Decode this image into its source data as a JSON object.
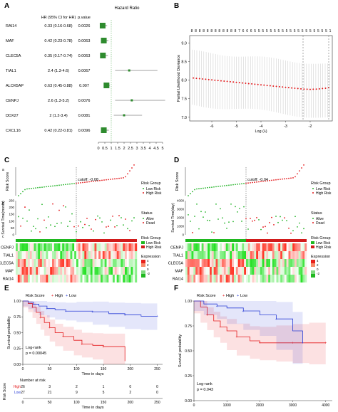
{
  "panel_labels": [
    "A",
    "B",
    "C",
    "D",
    "E",
    "F"
  ],
  "forest": {
    "title": "Hazard Ratio",
    "col_hr": "HR (95% CI for HR)",
    "col_p": "p.value",
    "genes": [
      "RAI14",
      "MAF",
      "CLEC5A",
      "TIAL1",
      "ALOX5AP",
      "CENPJ",
      "DDX27",
      "CXCL16"
    ],
    "hr_text": [
      "0.33 (0.16-0.68)",
      "0.42 (0.23-0.78)",
      "0.35 (0.17-0.74)",
      "2.4 (1.3-4.6)",
      "0.63 (0.45-0.88)",
      "2.6 (1.3-5.2)",
      "2 (1.2-3.4)",
      "0.42 (0.22-0.81)"
    ],
    "p_text": [
      "0.0026",
      "0.0063",
      "0.0063",
      "0.0067",
      "0.007",
      "0.0076",
      "0.0081",
      "0.0096"
    ],
    "x_ticks": [
      "0",
      "0.5",
      "1",
      "1.5",
      "2",
      "2.5",
      "3",
      "3.5",
      "4",
      "4.5",
      "5"
    ]
  },
  "lasso": {
    "top_counts": [
      "8",
      "8",
      "8",
      "8",
      "8",
      "8",
      "8",
      "8",
      "8",
      "8",
      "8",
      "8",
      "7",
      "6",
      "6",
      "6",
      "5",
      "5",
      "5",
      "5",
      "5",
      "5",
      "5",
      "5",
      "5",
      "5",
      "5",
      "5",
      "5",
      "5",
      "5",
      "5",
      "5",
      "5",
      "5",
      "1"
    ],
    "ylabel": "Partial Likelihood Deviance",
    "xlabel": "Log (λ)",
    "y_ticks": [
      "7.0",
      "7.5",
      "8.0",
      "8.5",
      "9.0"
    ],
    "x_ticks": [
      "-6",
      "-5",
      "-4",
      "-3",
      "-2"
    ]
  },
  "risk_c": {
    "cutoff": "cutoff: -0.08",
    "ylabel_score": "Risk Score",
    "ylabel_time": "Survival Time(month)",
    "y_ticks_time": [
      "0",
      "50",
      "100",
      "150",
      "200",
      "250"
    ],
    "legend_group_title": "Risk Group",
    "legend_low": "Low Risk",
    "legend_high": "High Risk",
    "legend_status_title": "Status",
    "legend_alive": "Alive",
    "legend_dead": "Dead",
    "genes": [
      "CENPJ",
      "TIAL1",
      "CLEC5A",
      "MAF",
      "RAI14"
    ],
    "expr_title": "Expression",
    "expr_ticks": [
      "4",
      "2",
      "0",
      "-2"
    ],
    "small_labels": [
      "a",
      "b",
      "c"
    ]
  },
  "risk_d": {
    "cutoff": "cutoff: -0.04",
    "ylabel_score": "Risk Score",
    "ylabel_time": "Survival Time(day)",
    "y_ticks_time": [
      "0",
      "1000",
      "2000",
      "3000",
      "4000"
    ],
    "legend_group_title": "Risk Group",
    "legend_low": "Low Risk",
    "legend_high": "High Risk",
    "legend_status_title": "Status",
    "legend_alive": "Alive",
    "legend_dead": "Dead",
    "genes": [
      "CENPJ",
      "TIAL1",
      "CLEC5A",
      "MAF",
      "RAI14"
    ],
    "expr_title": "Expression",
    "expr_ticks": [
      "4",
      "2",
      "0",
      "-2"
    ]
  },
  "km_e": {
    "legend_title": "Risk Score",
    "legend_high": "High",
    "legend_low": "Low",
    "ylabel": "Survival probability",
    "y_ticks": [
      "0.00",
      "0.25",
      "0.50",
      "0.75",
      "1.00"
    ],
    "x_ticks": [
      "0",
      "50",
      "100",
      "150",
      "200",
      "250"
    ],
    "xlabel": "Time in days",
    "logrank": "Log-rank",
    "pvalue": "p = 0.00045",
    "risk_table_title": "Number at risk",
    "risk_rows": [
      {
        "label": "High",
        "values": [
          "26",
          "3",
          "2",
          "1",
          "0",
          "0"
        ]
      },
      {
        "label": "Low",
        "values": [
          "27",
          "21",
          "9",
          "5",
          "2",
          "0"
        ]
      }
    ],
    "risk_ylabel": "Risk Score",
    "risk_xlabel": "Time in days"
  },
  "km_f": {
    "legend_title": "Risk Score",
    "legend_high": "High",
    "legend_low": "Low",
    "ylabel": "Survival probability",
    "y_ticks": [
      "0.00",
      "0.25",
      "0.50",
      "0.75",
      "1.00"
    ],
    "x_ticks": [
      "0",
      "1000",
      "2000",
      "3000",
      "4000"
    ],
    "logrank": "Log-rank",
    "pvalue": "p = 0.043"
  },
  "colors": {
    "high": "#e41a1c",
    "low": "#2b3fd6",
    "alive": "#27b42c",
    "forest_box": "#2e8b2e",
    "dev_point": "#e41a1c"
  },
  "chart_data": [
    {
      "type": "scatter",
      "panel": "A",
      "categories": [
        "RAI14",
        "MAF",
        "CLEC5A",
        "TIAL1",
        "ALOX5AP",
        "CENPJ",
        "DDX27",
        "CXCL16"
      ],
      "hr": [
        0.33,
        0.42,
        0.35,
        2.4,
        0.63,
        2.6,
        2.0,
        0.42
      ],
      "ci_low": [
        0.16,
        0.23,
        0.17,
        1.3,
        0.45,
        1.3,
        1.2,
        0.22
      ],
      "ci_high": [
        0.68,
        0.78,
        0.74,
        4.6,
        0.88,
        5.2,
        3.4,
        0.81
      ],
      "p_value": [
        0.0026,
        0.0063,
        0.0063,
        0.0067,
        0.007,
        0.0076,
        0.0081,
        0.0096
      ],
      "xlim": [
        0,
        5
      ]
    },
    {
      "type": "line",
      "panel": "B",
      "x": [
        -6.8,
        -6.5,
        -6.2,
        -5.9,
        -5.6,
        -5.3,
        -5.0,
        -4.7,
        -4.4,
        -4.1,
        -3.8,
        -3.5,
        -3.2,
        -2.9,
        -2.6,
        -2.3,
        -2.0,
        -1.7,
        -1.4,
        -1.2
      ],
      "y": [
        8.06,
        8.04,
        8.02,
        8.0,
        7.98,
        7.96,
        7.94,
        7.92,
        7.9,
        7.88,
        7.86,
        7.84,
        7.82,
        7.8,
        7.78,
        7.76,
        7.75,
        7.76,
        7.78,
        7.8
      ],
      "ylim": [
        6.9,
        9.2
      ],
      "xlim": [
        -6.9,
        -1.1
      ]
    },
    {
      "type": "line",
      "panel": "E",
      "series": [
        {
          "name": "High",
          "x": [
            0,
            10,
            18,
            25,
            33,
            40,
            50,
            60,
            75,
            95,
            110,
            130,
            150,
            190
          ],
          "y": [
            1.0,
            0.96,
            0.9,
            0.82,
            0.74,
            0.66,
            0.58,
            0.5,
            0.44,
            0.38,
            0.32,
            0.3,
            0.28,
            0.05
          ]
        },
        {
          "name": "Low",
          "x": [
            0,
            10,
            20,
            30,
            45,
            60,
            80,
            100,
            130,
            160,
            190,
            220,
            250
          ],
          "y": [
            1.0,
            0.98,
            0.95,
            0.92,
            0.88,
            0.86,
            0.84,
            0.84,
            0.83,
            0.8,
            0.78,
            0.76,
            0.76
          ]
        }
      ],
      "xlim": [
        0,
        260
      ],
      "ylim": [
        0,
        1
      ]
    },
    {
      "type": "line",
      "panel": "F",
      "series": [
        {
          "name": "High",
          "x": [
            0,
            200,
            400,
            600,
            800,
            1000,
            1300,
            1700,
            2000,
            2500,
            3000,
            3500,
            4000
          ],
          "y": [
            1.0,
            0.94,
            0.86,
            0.8,
            0.74,
            0.7,
            0.64,
            0.6,
            0.58,
            0.58,
            0.58,
            0.58,
            0.58
          ]
        },
        {
          "name": "Low",
          "x": [
            0,
            300,
            700,
            1000,
            1500,
            2000,
            2500,
            3000,
            3300
          ],
          "y": [
            1.0,
            0.97,
            0.95,
            0.93,
            0.9,
            0.86,
            0.82,
            0.7,
            0.58
          ]
        }
      ],
      "xlim": [
        0,
        4200
      ],
      "ylim": [
        0,
        1
      ]
    }
  ]
}
